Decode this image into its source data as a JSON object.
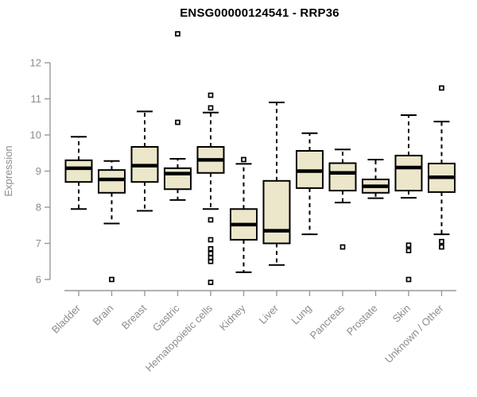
{
  "chart_data": {
    "type": "boxplot",
    "title": "ENSG00000124541 - RRP36",
    "xlabel": "",
    "ylabel": "Expression",
    "ylim": [
      6,
      12
    ],
    "yticks": [
      6,
      7,
      8,
      9,
      10,
      11,
      12
    ],
    "grid": false,
    "legend": "none",
    "categories": [
      "Bladder",
      "Brain",
      "Breast",
      "Gastric",
      "Hematopoietic cells",
      "Kidney",
      "Liver",
      "Lung",
      "Pancreas",
      "Prostate",
      "Skin",
      "Unknown / Other"
    ],
    "series": [
      {
        "name": "Bladder",
        "whisker_low": 7.95,
        "q1": 8.7,
        "median": 9.08,
        "q3": 9.3,
        "whisker_high": 9.95,
        "outliers": []
      },
      {
        "name": "Brain",
        "whisker_low": 7.55,
        "q1": 8.4,
        "median": 8.77,
        "q3": 9.03,
        "whisker_high": 9.28,
        "outliers": [
          6.0
        ]
      },
      {
        "name": "Breast",
        "whisker_low": 7.9,
        "q1": 8.7,
        "median": 9.15,
        "q3": 9.67,
        "whisker_high": 10.65,
        "outliers": []
      },
      {
        "name": "Gastric",
        "whisker_low": 8.2,
        "q1": 8.5,
        "median": 8.93,
        "q3": 9.08,
        "whisker_high": 9.34,
        "outliers": [
          10.35,
          12.8
        ]
      },
      {
        "name": "Hematopoietic cells",
        "whisker_low": 7.95,
        "q1": 8.95,
        "median": 9.31,
        "q3": 9.67,
        "whisker_high": 10.62,
        "outliers": [
          11.1,
          10.75,
          7.65,
          7.1,
          6.85,
          6.72,
          6.6,
          6.5,
          5.92
        ]
      },
      {
        "name": "Kidney",
        "whisker_low": 6.2,
        "q1": 7.1,
        "median": 7.52,
        "q3": 7.95,
        "whisker_high": 9.2,
        "outliers": [
          9.32
        ]
      },
      {
        "name": "Liver",
        "whisker_low": 6.4,
        "q1": 7.0,
        "median": 7.35,
        "q3": 8.73,
        "whisker_high": 10.9,
        "outliers": []
      },
      {
        "name": "Lung",
        "whisker_low": 7.25,
        "q1": 8.53,
        "median": 9.0,
        "q3": 9.56,
        "whisker_high": 10.05,
        "outliers": []
      },
      {
        "name": "Pancreas",
        "whisker_low": 8.13,
        "q1": 8.46,
        "median": 8.95,
        "q3": 9.22,
        "whisker_high": 9.6,
        "outliers": [
          6.9
        ]
      },
      {
        "name": "Prostate",
        "whisker_low": 8.25,
        "q1": 8.4,
        "median": 8.58,
        "q3": 8.77,
        "whisker_high": 9.32,
        "outliers": []
      },
      {
        "name": "Skin",
        "whisker_low": 8.26,
        "q1": 8.46,
        "median": 9.1,
        "q3": 9.43,
        "whisker_high": 10.55,
        "outliers": [
          6.95,
          6.8,
          6.0
        ]
      },
      {
        "name": "Unknown / Other",
        "whisker_low": 7.25,
        "q1": 8.42,
        "median": 8.83,
        "q3": 9.21,
        "whisker_high": 10.37,
        "outliers": [
          11.3,
          7.05,
          6.9
        ]
      }
    ],
    "colors": {
      "box_fill": "#ECE6CA",
      "box_border": "#000000",
      "median": "#000000",
      "whisker": "#000000",
      "outlier": "#000000",
      "axis_line": "#999999",
      "axis_text": "#8C8C8C",
      "title": "#000000",
      "background": "#FFFFFF"
    }
  }
}
